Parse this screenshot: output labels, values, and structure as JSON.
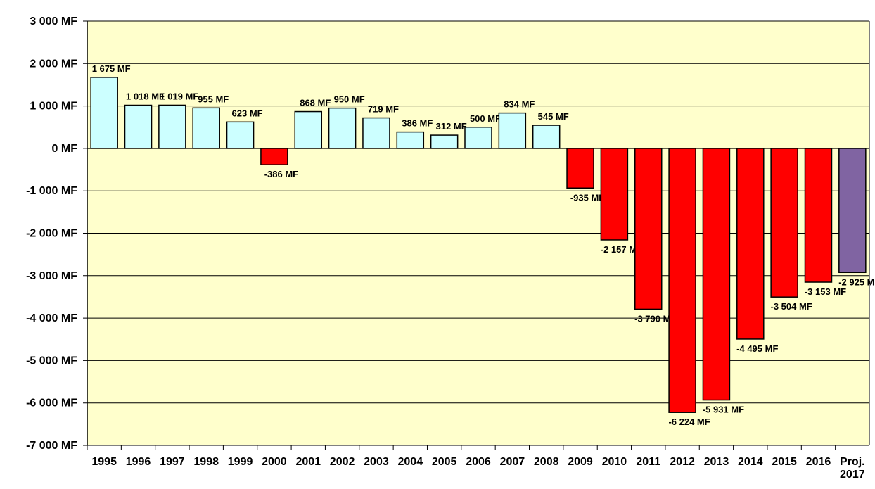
{
  "chart_data": {
    "type": "bar",
    "title": "",
    "xlabel": "",
    "ylabel": "",
    "unit_suffix": " MF",
    "ylim": [
      -7000,
      3000
    ],
    "ytick_step": 1000,
    "yticks": [
      "3 000 MF",
      "2 000 MF",
      "1 000 MF",
      "0 MF",
      "-1 000 MF",
      "-2 000 MF",
      "-3 000 MF",
      "-4 000 MF",
      "-5 000 MF",
      "-6 000 MF",
      "-7 000 MF"
    ],
    "grid": true,
    "legend": "none",
    "categories": [
      "1995",
      "1996",
      "1997",
      "1998",
      "1999",
      "2000",
      "2001",
      "2002",
      "2003",
      "2004",
      "2005",
      "2006",
      "2007",
      "2008",
      "2009",
      "2010",
      "2011",
      "2012",
      "2013",
      "2014",
      "2015",
      "2016",
      "Proj. 2017"
    ],
    "values": [
      1675,
      1018,
      1019,
      955,
      623,
      -386,
      868,
      950,
      719,
      386,
      312,
      500,
      834,
      545,
      -935,
      -2157,
      -3790,
      -6224,
      -5931,
      -4495,
      -3504,
      -3153,
      -2925
    ],
    "data_labels": [
      "1 675 MF",
      "1 018 MF",
      "1 019 MF",
      "955 MF",
      "623 MF",
      "-386 MF",
      "868 MF",
      "950 MF",
      "719 MF",
      "386 MF",
      "312 MF",
      "500 MF",
      "834 MF",
      "545 MF",
      "-935 MF",
      "-2 157 MF",
      "-3 790 MF",
      "-6 224 MF",
      "-5 931 MF",
      "-4 495 MF",
      "-3 504 MF",
      "-3 153 MF",
      "-2 925 MF"
    ],
    "colors": {
      "positive": "#CCFFFF",
      "negative": "#FF0000",
      "projection": "#8064A2",
      "plot_background": "#FFFFCC"
    }
  }
}
